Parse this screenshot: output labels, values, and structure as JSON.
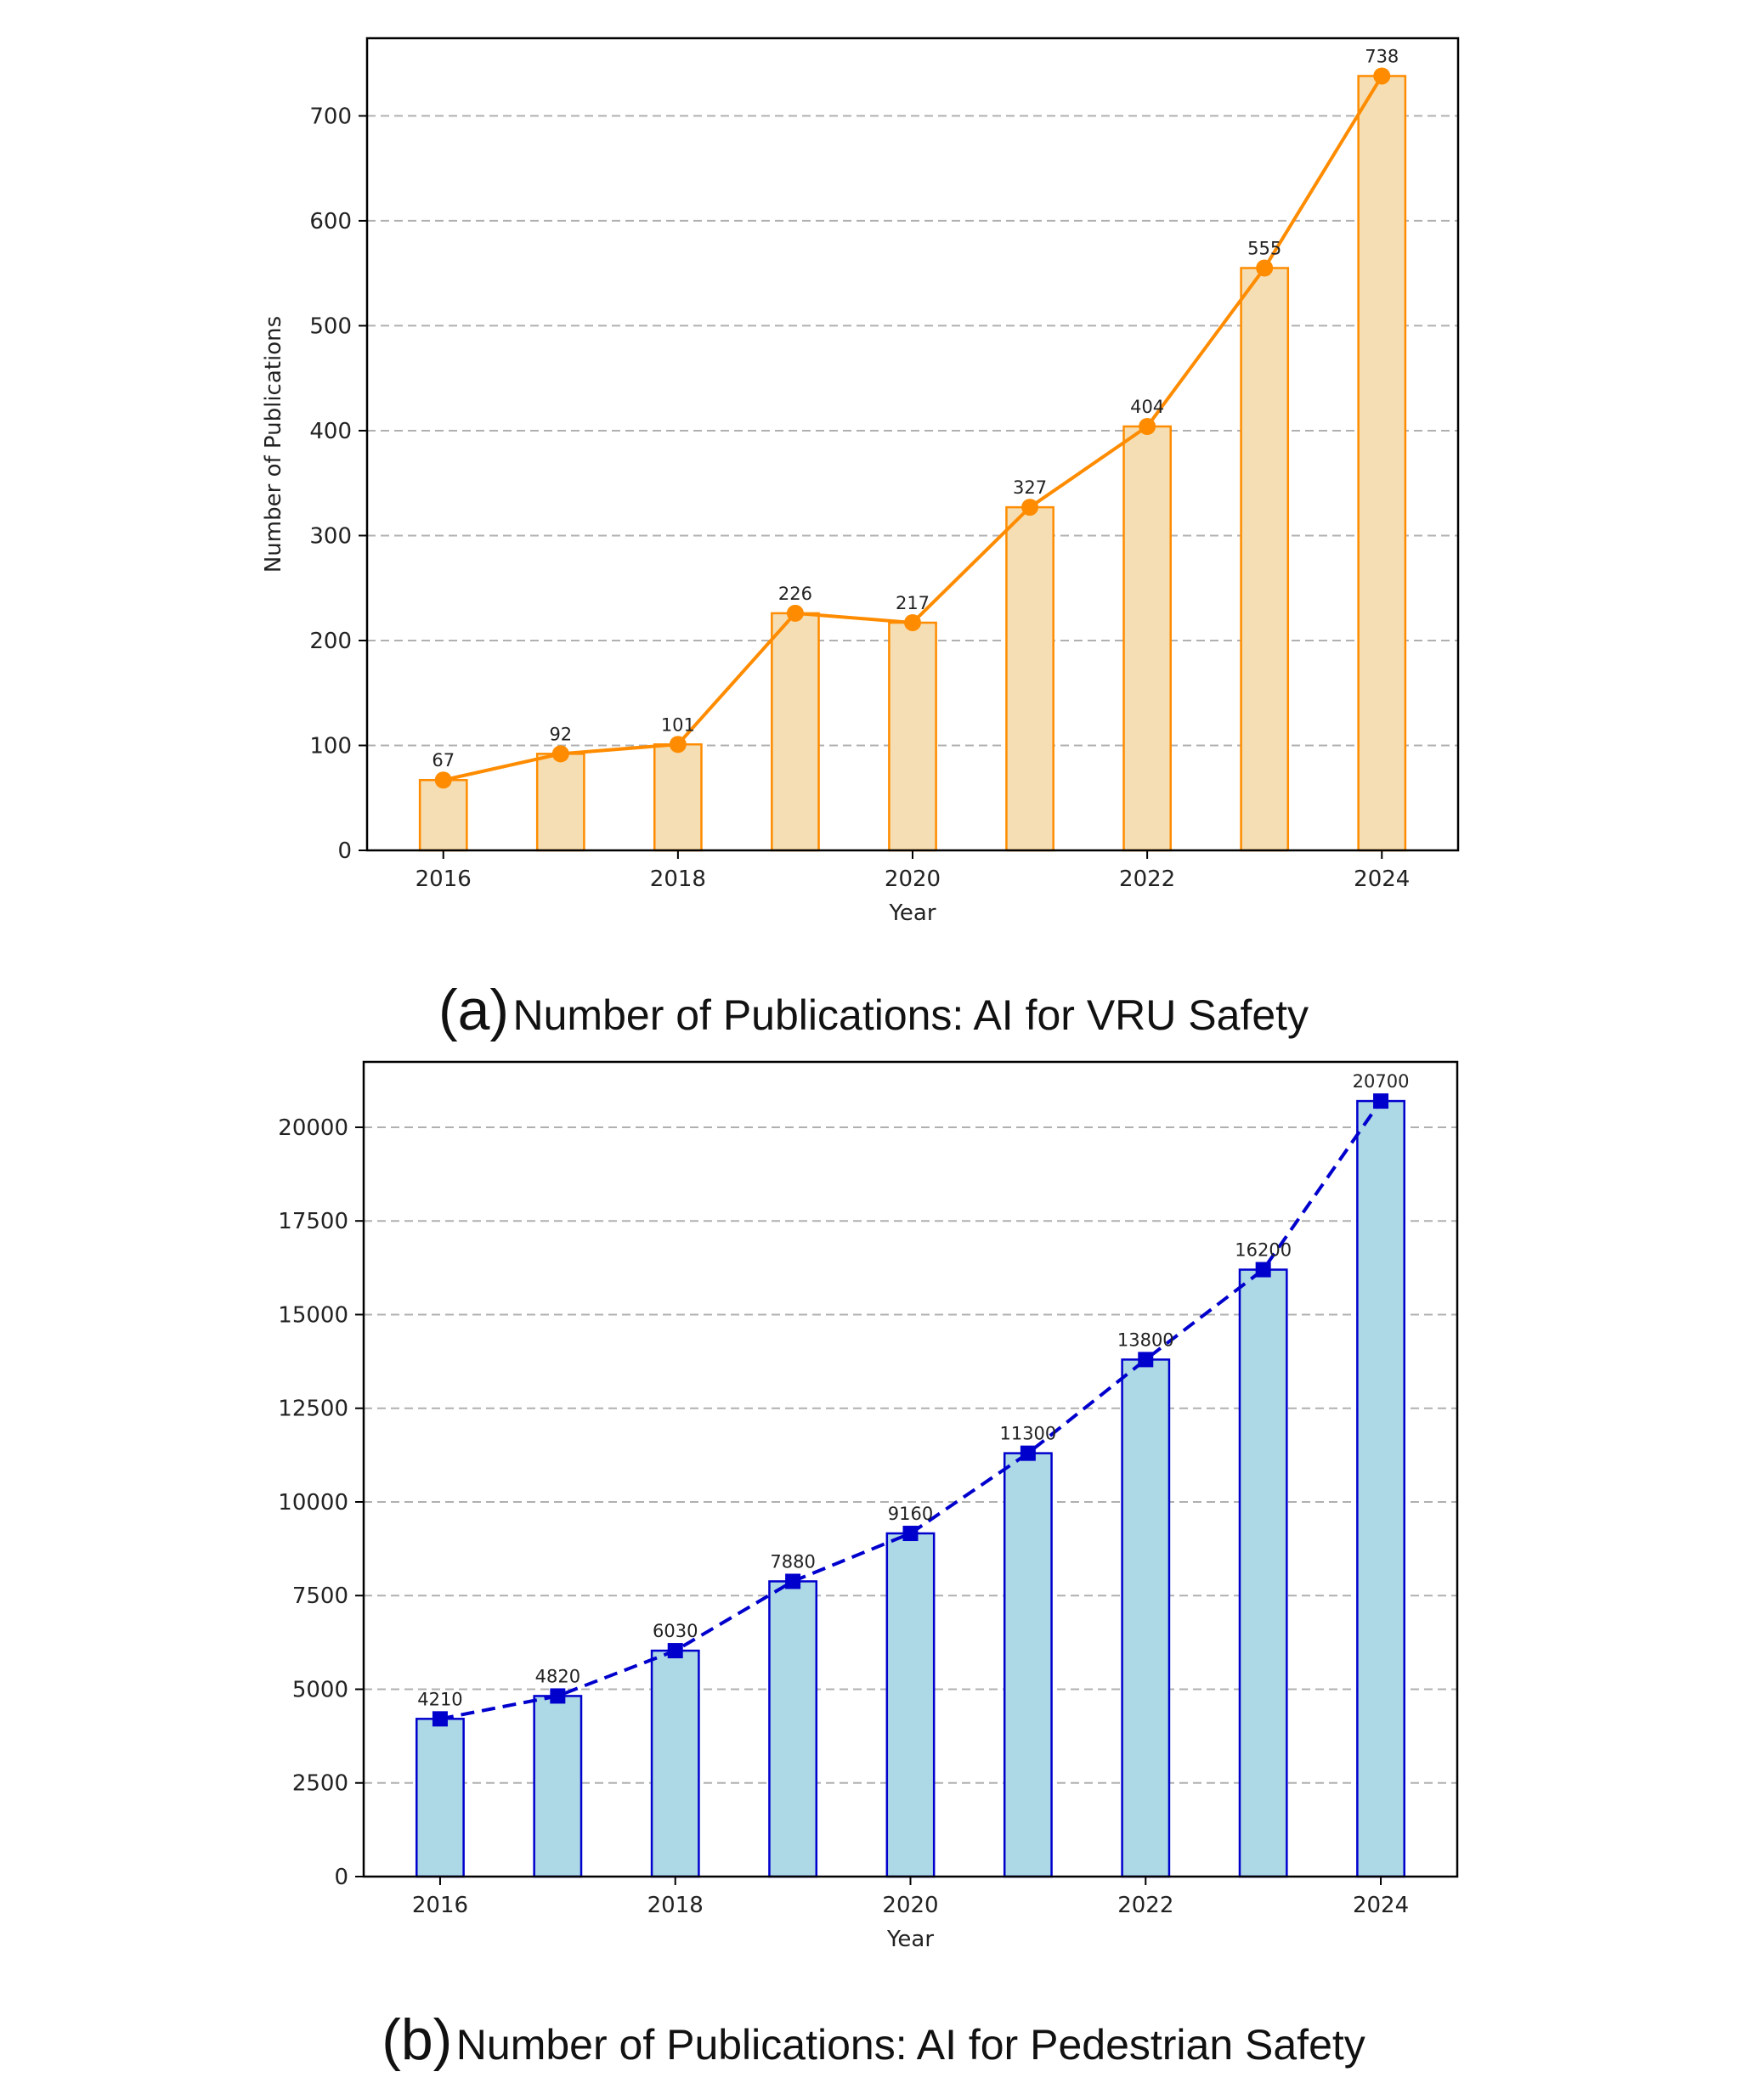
{
  "chart_data": [
    {
      "type": "bar",
      "overlay": "line",
      "id": "a",
      "caption_tag": "(a)",
      "caption": "Number of Publications: AI for VRU Safety",
      "xlabel": "Year",
      "ylabel": "Number of Publications",
      "x": [
        2016,
        2017,
        2018,
        2019,
        2020,
        2021,
        2022,
        2023,
        2024
      ],
      "values": [
        67,
        92,
        101,
        226,
        217,
        327,
        404,
        555,
        738
      ],
      "data_labels": [
        "67",
        "92",
        "101",
        "226",
        "217",
        "327",
        "404",
        "555",
        "738"
      ],
      "xticks": [
        2016,
        2018,
        2020,
        2022,
        2024
      ],
      "xtick_labels": [
        "2016",
        "2018",
        "2020",
        "2022",
        "2024"
      ],
      "yticks": [
        0,
        100,
        200,
        300,
        400,
        500,
        600,
        700
      ],
      "ytick_labels": [
        "0",
        "100",
        "200",
        "300",
        "400",
        "500",
        "600",
        "700"
      ],
      "ylim": [
        0,
        774
      ],
      "xlim": [
        2015.35,
        2024.65
      ],
      "grid": "y-dashed",
      "bar_fill": "#f5deb3",
      "bar_edge": "#ff8c00",
      "line_color": "#ff8c00",
      "line_style": "solid",
      "marker": "circle"
    },
    {
      "type": "bar",
      "overlay": "line",
      "id": "b",
      "caption_tag": "(b)",
      "caption": "Number of Publications: AI for Pedestrian Safety",
      "xlabel": "Year",
      "ylabel": "",
      "x": [
        2016,
        2017,
        2018,
        2019,
        2020,
        2021,
        2022,
        2023,
        2024
      ],
      "values": [
        4210,
        4820,
        6030,
        7880,
        9160,
        11300,
        13800,
        16200,
        20700
      ],
      "data_labels": [
        "4210",
        "4820",
        "6030",
        "7880",
        "9160",
        "11300",
        "13800",
        "16200",
        "20700"
      ],
      "xticks": [
        2016,
        2018,
        2020,
        2022,
        2024
      ],
      "xtick_labels": [
        "2016",
        "2018",
        "2020",
        "2022",
        "2024"
      ],
      "yticks": [
        0,
        2500,
        5000,
        7500,
        10000,
        12500,
        15000,
        17500,
        20000
      ],
      "ytick_labels": [
        "0",
        "2500",
        "5000",
        "7500",
        "10000",
        "12500",
        "15000",
        "17500",
        "20000"
      ],
      "ylim": [
        0,
        21745
      ],
      "xlim": [
        2015.35,
        2024.65
      ],
      "grid": "y-dashed",
      "bar_fill": "#add8e6",
      "bar_edge": "#0000cd",
      "line_color": "#0000cd",
      "line_style": "dashed",
      "marker": "square"
    }
  ]
}
